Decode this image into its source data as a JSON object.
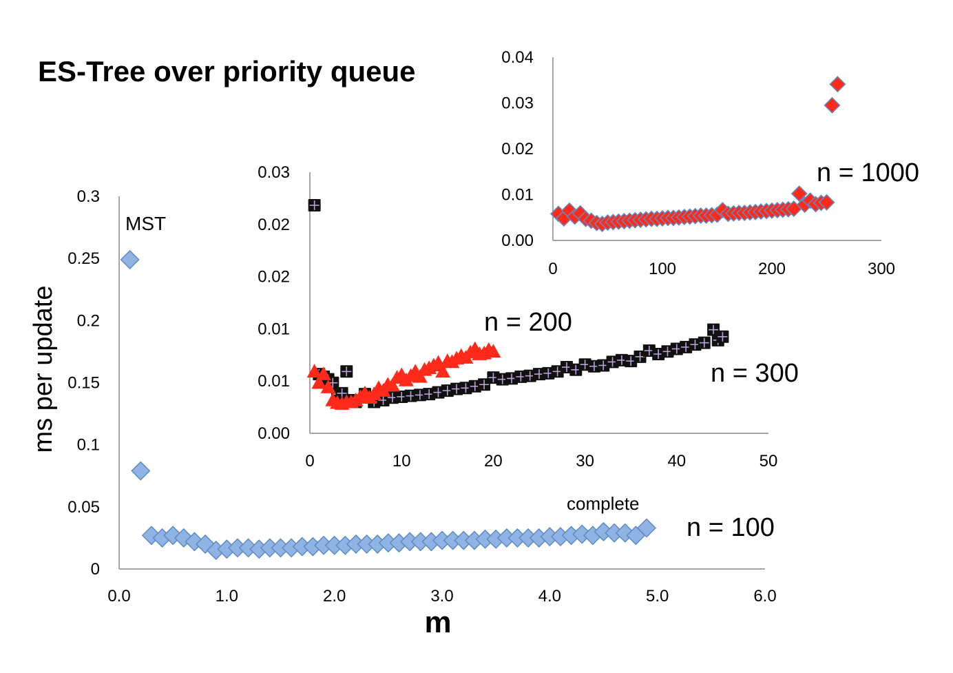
{
  "title": "ES-Tree over priority queue",
  "chart_data": [
    {
      "type": "scatter",
      "xlabel": "m",
      "ylabel": "ms per update",
      "xlim": [
        0,
        6
      ],
      "ylim": [
        0,
        0.3
      ],
      "xticks": [
        "0.0",
        "1.0",
        "2.0",
        "3.0",
        "4.0",
        "5.0",
        "6.0"
      ],
      "yticks": [
        "0",
        "0.05",
        "0.1",
        "0.15",
        "0.2",
        "0.25",
        "0.3"
      ],
      "annotations": [
        "MST",
        "complete",
        "n = 100"
      ],
      "marker": "diamond",
      "color": "#8fb4e3",
      "series": [
        {
          "x": [
            0.1,
            0.2,
            0.3,
            0.4,
            0.5,
            0.6,
            0.7,
            0.8,
            0.9,
            1.0,
            1.1,
            1.2,
            1.3,
            1.4,
            1.5,
            1.6,
            1.7,
            1.8,
            1.9,
            2.0,
            2.1,
            2.2,
            2.3,
            2.4,
            2.5,
            2.6,
            2.7,
            2.8,
            2.9,
            3.0,
            3.1,
            3.2,
            3.3,
            3.4,
            3.5,
            3.6,
            3.7,
            3.8,
            3.9,
            4.0,
            4.1,
            4.2,
            4.3,
            4.4,
            4.5,
            4.6,
            4.7,
            4.8,
            4.9
          ],
          "y": [
            0.249,
            0.079,
            0.027,
            0.025,
            0.027,
            0.025,
            0.022,
            0.02,
            0.015,
            0.016,
            0.017,
            0.017,
            0.016,
            0.017,
            0.017,
            0.017,
            0.018,
            0.018,
            0.019,
            0.019,
            0.019,
            0.02,
            0.02,
            0.02,
            0.021,
            0.021,
            0.022,
            0.022,
            0.022,
            0.023,
            0.023,
            0.023,
            0.023,
            0.024,
            0.024,
            0.025,
            0.025,
            0.025,
            0.025,
            0.026,
            0.026,
            0.027,
            0.028,
            0.027,
            0.03,
            0.029,
            0.029,
            0.027,
            0.033
          ]
        }
      ]
    },
    {
      "type": "scatter",
      "xlim": [
        0,
        50
      ],
      "ylim": [
        0,
        0.03
      ],
      "xticks": [
        "0",
        "10",
        "20",
        "30",
        "40",
        "50"
      ],
      "yticks": [
        "0.00",
        "0.01",
        "0.01",
        "0.02",
        "0.02",
        "0.03"
      ],
      "annotations": [
        "n = 200",
        "n = 300"
      ],
      "series": [
        {
          "marker": "triangle",
          "color": "#ff2a1a",
          "x": [
            0.5,
            1,
            1.5,
            2,
            2.5,
            3,
            3.5,
            4,
            4.5,
            5,
            5.5,
            6,
            6.5,
            7,
            7.5,
            8,
            8.5,
            9,
            9.5,
            10,
            10.5,
            11,
            11.5,
            12,
            12.5,
            13,
            13.5,
            14,
            14.5,
            15,
            15.5,
            16,
            16.5,
            17,
            17.5,
            18,
            18.5,
            19,
            19.5,
            20
          ],
          "y": [
            0.0071,
            0.0058,
            0.0068,
            0.0053,
            0.0038,
            0.0035,
            0.0034,
            0.0036,
            0.0036,
            0.0038,
            0.0042,
            0.0046,
            0.0041,
            0.0045,
            0.0052,
            0.0049,
            0.0056,
            0.0055,
            0.0064,
            0.0067,
            0.0061,
            0.0066,
            0.0071,
            0.0065,
            0.0073,
            0.0075,
            0.0078,
            0.0081,
            0.0071,
            0.0083,
            0.0082,
            0.0086,
            0.0089,
            0.0087,
            0.0093,
            0.0097,
            0.0091,
            0.0092,
            0.0096,
            0.0094
          ]
        },
        {
          "marker": "square-plus",
          "color": "#000000",
          "x": [
            0.5,
            1,
            1.5,
            2,
            2.5,
            3,
            3.5,
            4,
            4.5,
            5,
            6,
            7,
            8,
            9,
            10,
            11,
            12,
            13,
            14,
            15,
            16,
            17,
            18,
            19,
            20,
            21,
            22,
            23,
            24,
            25,
            26,
            27,
            28,
            29,
            30,
            31,
            32,
            33,
            34,
            35,
            36,
            37,
            38,
            39,
            40,
            41,
            42,
            43,
            44,
            44.5,
            45
          ],
          "y": [
            0.0262,
            0.0068,
            0.0065,
            0.0062,
            0.0058,
            0.0045,
            0.0046,
            0.0071,
            0.0038,
            0.0036,
            0.0045,
            0.0036,
            0.0038,
            0.0041,
            0.0042,
            0.0043,
            0.0044,
            0.0045,
            0.0047,
            0.0049,
            0.0051,
            0.0052,
            0.0054,
            0.0056,
            0.0064,
            0.0062,
            0.0063,
            0.0065,
            0.0066,
            0.0068,
            0.0069,
            0.0071,
            0.0076,
            0.0073,
            0.0079,
            0.0077,
            0.0078,
            0.0082,
            0.0084,
            0.0083,
            0.0088,
            0.0095,
            0.0091,
            0.0094,
            0.0097,
            0.0099,
            0.0102,
            0.0104,
            0.0119,
            0.0107,
            0.0111
          ]
        }
      ]
    },
    {
      "type": "scatter",
      "xlim": [
        0,
        300
      ],
      "ylim": [
        0,
        0.04
      ],
      "xticks": [
        "0",
        "100",
        "200",
        "300"
      ],
      "yticks": [
        "0.00",
        "0.01",
        "0.02",
        "0.03",
        "0.04"
      ],
      "annotations": [
        "n = 1000"
      ],
      "marker": "diamond",
      "color": "#ff2a1a",
      "series": [
        {
          "x": [
            5,
            10,
            15,
            20,
            25,
            30,
            35,
            40,
            45,
            50,
            55,
            60,
            65,
            70,
            75,
            80,
            85,
            90,
            95,
            100,
            105,
            110,
            115,
            120,
            125,
            130,
            135,
            140,
            145,
            150,
            155,
            160,
            165,
            170,
            175,
            180,
            185,
            190,
            195,
            200,
            205,
            210,
            215,
            220,
            225,
            230,
            235,
            240,
            245,
            250,
            255,
            260
          ],
          "y": [
            0.0058,
            0.0048,
            0.0065,
            0.0052,
            0.0059,
            0.0047,
            0.0043,
            0.0038,
            0.0036,
            0.0039,
            0.004,
            0.0041,
            0.0042,
            0.0043,
            0.0044,
            0.0045,
            0.0046,
            0.0047,
            0.0047,
            0.0048,
            0.0049,
            0.0049,
            0.005,
            0.0051,
            0.0052,
            0.0053,
            0.0054,
            0.0054,
            0.0055,
            0.0056,
            0.0066,
            0.0058,
            0.0059,
            0.006,
            0.006,
            0.0061,
            0.0062,
            0.0063,
            0.0064,
            0.0065,
            0.0066,
            0.0067,
            0.0068,
            0.0069,
            0.0102,
            0.0078,
            0.0087,
            0.0079,
            0.0082,
            0.0083,
            0.0295,
            0.0341
          ]
        }
      ]
    }
  ]
}
